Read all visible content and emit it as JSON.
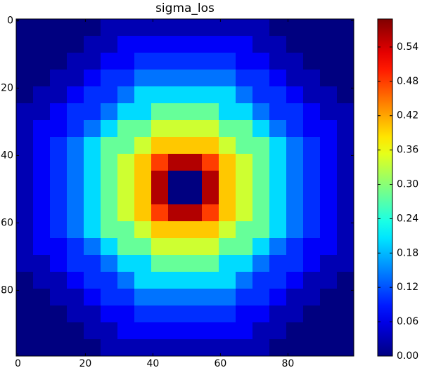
{
  "chart_data": {
    "type": "heatmap",
    "title": "sigma_los",
    "colormap": "jet",
    "xlim": [
      -0.5,
      99.5
    ],
    "ylim": [
      99.5,
      -0.5
    ],
    "xticks": [
      0,
      20,
      40,
      60,
      80
    ],
    "yticks": [
      0,
      20,
      40,
      60,
      80
    ],
    "clim": [
      0,
      0.589
    ],
    "cticks": [
      {
        "value": 0,
        "label": "0.00"
      },
      {
        "value": 0.06,
        "label": "0.06"
      },
      {
        "value": 0.12,
        "label": "0.12"
      },
      {
        "value": 0.18,
        "label": "0.18"
      },
      {
        "value": 0.24,
        "label": "0.24"
      },
      {
        "value": 0.3,
        "label": "0.30"
      },
      {
        "value": 0.36,
        "label": "0.36"
      },
      {
        "value": 0.42,
        "label": "0.42"
      },
      {
        "value": 0.48,
        "label": "0.48"
      },
      {
        "value": 0.54,
        "label": "0.54"
      }
    ],
    "z": [
      [
        0,
        0,
        0,
        0,
        0,
        0.03,
        0.03,
        0.03,
        0.03,
        0.03,
        0.03,
        0.03,
        0.03,
        0.03,
        0.03,
        0,
        0,
        0,
        0,
        0
      ],
      [
        0,
        0,
        0,
        0,
        0.03,
        0.03,
        0.07,
        0.07,
        0.07,
        0.07,
        0.07,
        0.07,
        0.07,
        0.07,
        0.03,
        0.03,
        0,
        0,
        0,
        0
      ],
      [
        0,
        0,
        0,
        0.03,
        0.03,
        0.07,
        0.07,
        0.1,
        0.1,
        0.1,
        0.1,
        0.1,
        0.1,
        0.07,
        0.07,
        0.03,
        0.03,
        0,
        0,
        0
      ],
      [
        0,
        0,
        0.03,
        0.03,
        0.07,
        0.1,
        0.1,
        0.14,
        0.14,
        0.14,
        0.14,
        0.14,
        0.14,
        0.1,
        0.1,
        0.07,
        0.03,
        0.03,
        0,
        0
      ],
      [
        0,
        0.03,
        0.03,
        0.07,
        0.1,
        0.1,
        0.14,
        0.2,
        0.2,
        0.2,
        0.2,
        0.2,
        0.2,
        0.14,
        0.1,
        0.1,
        0.07,
        0.03,
        0.03,
        0
      ],
      [
        0.03,
        0.03,
        0.07,
        0.1,
        0.1,
        0.14,
        0.2,
        0.2,
        0.28,
        0.28,
        0.28,
        0.28,
        0.2,
        0.2,
        0.14,
        0.1,
        0.1,
        0.07,
        0.03,
        0.03
      ],
      [
        0.03,
        0.07,
        0.07,
        0.1,
        0.14,
        0.2,
        0.28,
        0.28,
        0.34,
        0.34,
        0.34,
        0.34,
        0.28,
        0.28,
        0.2,
        0.14,
        0.1,
        0.07,
        0.07,
        0.03
      ],
      [
        0.03,
        0.07,
        0.1,
        0.14,
        0.2,
        0.28,
        0.28,
        0.34,
        0.4,
        0.4,
        0.4,
        0.4,
        0.34,
        0.28,
        0.28,
        0.2,
        0.14,
        0.1,
        0.07,
        0.03
      ],
      [
        0.03,
        0.07,
        0.1,
        0.14,
        0.2,
        0.28,
        0.34,
        0.4,
        0.48,
        0.56,
        0.56,
        0.48,
        0.4,
        0.34,
        0.28,
        0.2,
        0.14,
        0.1,
        0.07,
        0.03
      ],
      [
        0.03,
        0.07,
        0.1,
        0.14,
        0.2,
        0.28,
        0.34,
        0.4,
        0.56,
        0,
        0,
        0.56,
        0.4,
        0.34,
        0.28,
        0.2,
        0.14,
        0.1,
        0.07,
        0.03
      ],
      [
        0.03,
        0.07,
        0.1,
        0.14,
        0.2,
        0.28,
        0.34,
        0.4,
        0.56,
        0,
        0,
        0.56,
        0.4,
        0.34,
        0.28,
        0.2,
        0.14,
        0.1,
        0.07,
        0.03
      ],
      [
        0.03,
        0.07,
        0.1,
        0.14,
        0.2,
        0.28,
        0.34,
        0.4,
        0.48,
        0.56,
        0.56,
        0.48,
        0.4,
        0.34,
        0.28,
        0.2,
        0.14,
        0.1,
        0.07,
        0.03
      ],
      [
        0.03,
        0.07,
        0.1,
        0.14,
        0.2,
        0.28,
        0.28,
        0.34,
        0.4,
        0.4,
        0.4,
        0.4,
        0.34,
        0.28,
        0.28,
        0.2,
        0.14,
        0.1,
        0.07,
        0.03
      ],
      [
        0.03,
        0.07,
        0.07,
        0.1,
        0.14,
        0.2,
        0.28,
        0.28,
        0.34,
        0.34,
        0.34,
        0.34,
        0.28,
        0.28,
        0.2,
        0.14,
        0.1,
        0.07,
        0.07,
        0.03
      ],
      [
        0.03,
        0.03,
        0.07,
        0.1,
        0.1,
        0.14,
        0.2,
        0.2,
        0.28,
        0.28,
        0.28,
        0.28,
        0.2,
        0.2,
        0.14,
        0.1,
        0.1,
        0.07,
        0.03,
        0.03
      ],
      [
        0,
        0.03,
        0.03,
        0.07,
        0.1,
        0.1,
        0.14,
        0.2,
        0.2,
        0.2,
        0.2,
        0.2,
        0.2,
        0.14,
        0.1,
        0.1,
        0.07,
        0.03,
        0.03,
        0
      ],
      [
        0,
        0,
        0.03,
        0.03,
        0.07,
        0.1,
        0.1,
        0.14,
        0.14,
        0.14,
        0.14,
        0.14,
        0.14,
        0.1,
        0.1,
        0.07,
        0.03,
        0.03,
        0,
        0
      ],
      [
        0,
        0,
        0,
        0.03,
        0.03,
        0.07,
        0.07,
        0.1,
        0.1,
        0.1,
        0.1,
        0.1,
        0.1,
        0.07,
        0.07,
        0.03,
        0.03,
        0,
        0,
        0
      ],
      [
        0,
        0,
        0,
        0,
        0.03,
        0.03,
        0.07,
        0.07,
        0.07,
        0.07,
        0.07,
        0.07,
        0.07,
        0.07,
        0.03,
        0.03,
        0,
        0,
        0,
        0
      ],
      [
        0,
        0,
        0,
        0,
        0,
        0.03,
        0.03,
        0.03,
        0.03,
        0.03,
        0.03,
        0.03,
        0.03,
        0.03,
        0.03,
        0,
        0,
        0,
        0,
        0
      ]
    ]
  }
}
